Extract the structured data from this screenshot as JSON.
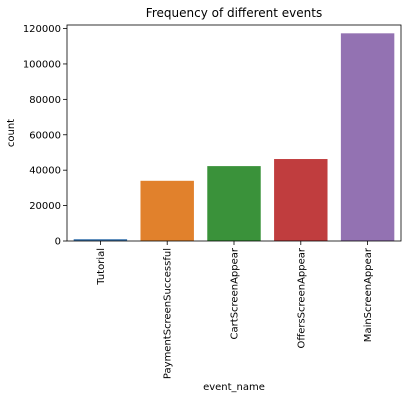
{
  "chart_data": {
    "type": "bar",
    "title": "Frequency of different events",
    "xlabel": "event_name",
    "ylabel": "count",
    "categories": [
      "Tutorial",
      "PaymentScreenSuccessful",
      "CartScreenAppear",
      "OffersScreenAppear",
      "MainScreenAppear"
    ],
    "values": [
      1018,
      34000,
      42300,
      46300,
      117300
    ],
    "colors": [
      "#3a75af",
      "#e1812c",
      "#3a923a",
      "#c03d3e",
      "#9372b2"
    ],
    "ylim": [
      0,
      122000
    ],
    "yticks": [
      0,
      20000,
      40000,
      60000,
      80000,
      100000,
      120000
    ],
    "grid": false,
    "legend": "none"
  }
}
